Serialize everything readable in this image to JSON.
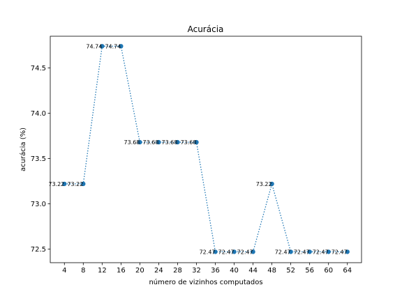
{
  "chart_data": {
    "type": "line",
    "title": "Acurácia",
    "xlabel": "número de vizinhos computados",
    "ylabel": "acurácia (%)",
    "x": [
      4,
      8,
      12,
      16,
      20,
      24,
      28,
      32,
      36,
      40,
      44,
      48,
      52,
      56,
      60,
      64
    ],
    "y": [
      73.22,
      73.22,
      74.74,
      74.74,
      73.68,
      73.68,
      73.68,
      73.68,
      72.47,
      72.47,
      72.47,
      73.22,
      72.47,
      72.47,
      72.47,
      72.47
    ],
    "labels": [
      "73.22",
      "73.22",
      "74.74",
      "74.74",
      "73.68",
      "73.68",
      "73.68",
      "73.68",
      "72.47",
      "72.47",
      "72.47",
      "73.22",
      "72.47",
      "72.47",
      "72.47",
      "72.47"
    ],
    "xticks": [
      4,
      8,
      12,
      16,
      20,
      24,
      28,
      32,
      36,
      40,
      44,
      48,
      52,
      56,
      60,
      64
    ],
    "xtick_labels": [
      "4",
      "8",
      "12",
      "16",
      "20",
      "24",
      "28",
      "32",
      "36",
      "40",
      "44",
      "48",
      "52",
      "56",
      "60",
      "64"
    ],
    "yticks": [
      72.5,
      73.0,
      73.5,
      74.0,
      74.5
    ],
    "ytick_labels": [
      "72.5",
      "73.0",
      "73.5",
      "74.0",
      "74.5"
    ],
    "xlim": [
      1,
      67
    ],
    "ylim": [
      72.35,
      74.85
    ],
    "grid": false,
    "line_style": "dotted",
    "color": "#1f77b4"
  }
}
